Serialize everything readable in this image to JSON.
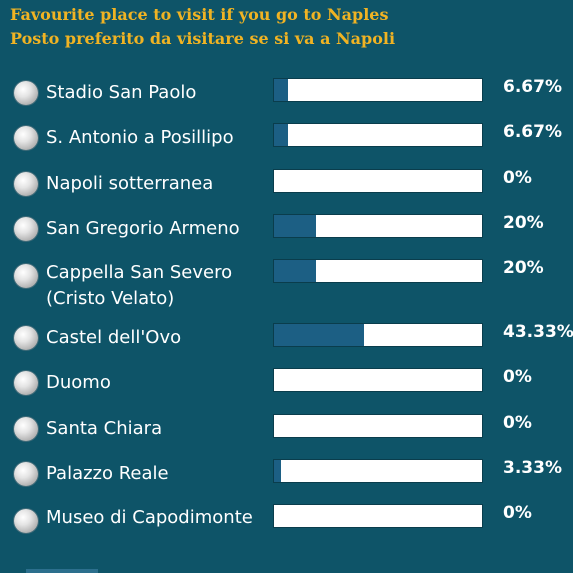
{
  "poll": {
    "title_en": "Favourite place to visit if you go to Naples",
    "title_it": "Posto preferito da visitare se si va a Napoli",
    "options": [
      {
        "label": "Stadio San Paolo",
        "percent_label": "6.67%",
        "fraction": 0.0667
      },
      {
        "label": "S. Antonio a Posillipo",
        "percent_label": "6.67%",
        "fraction": 0.0667
      },
      {
        "label": "Napoli sotterranea",
        "percent_label": "0%",
        "fraction": 0
      },
      {
        "label": "San Gregorio Armeno",
        "percent_label": "20%",
        "fraction": 0.2
      },
      {
        "label": "Cappella San Severo (Cristo Velato)",
        "percent_label": "20%",
        "fraction": 0.2
      },
      {
        "label": "Castel dell'Ovo",
        "percent_label": "43.33%",
        "fraction": 0.4333
      },
      {
        "label": "Duomo",
        "percent_label": "0%",
        "fraction": 0
      },
      {
        "label": "Santa Chiara",
        "percent_label": "0%",
        "fraction": 0
      },
      {
        "label": "Palazzo Reale",
        "percent_label": "3.33%",
        "fraction": 0.0333
      },
      {
        "label": "Museo di Capodimonte",
        "percent_label": "0%",
        "fraction": 0
      }
    ]
  },
  "colors": {
    "background": "#0e5468",
    "title": "#f0b323",
    "bar_fill": "#1c5f84",
    "bar_track": "#ffffff"
  }
}
